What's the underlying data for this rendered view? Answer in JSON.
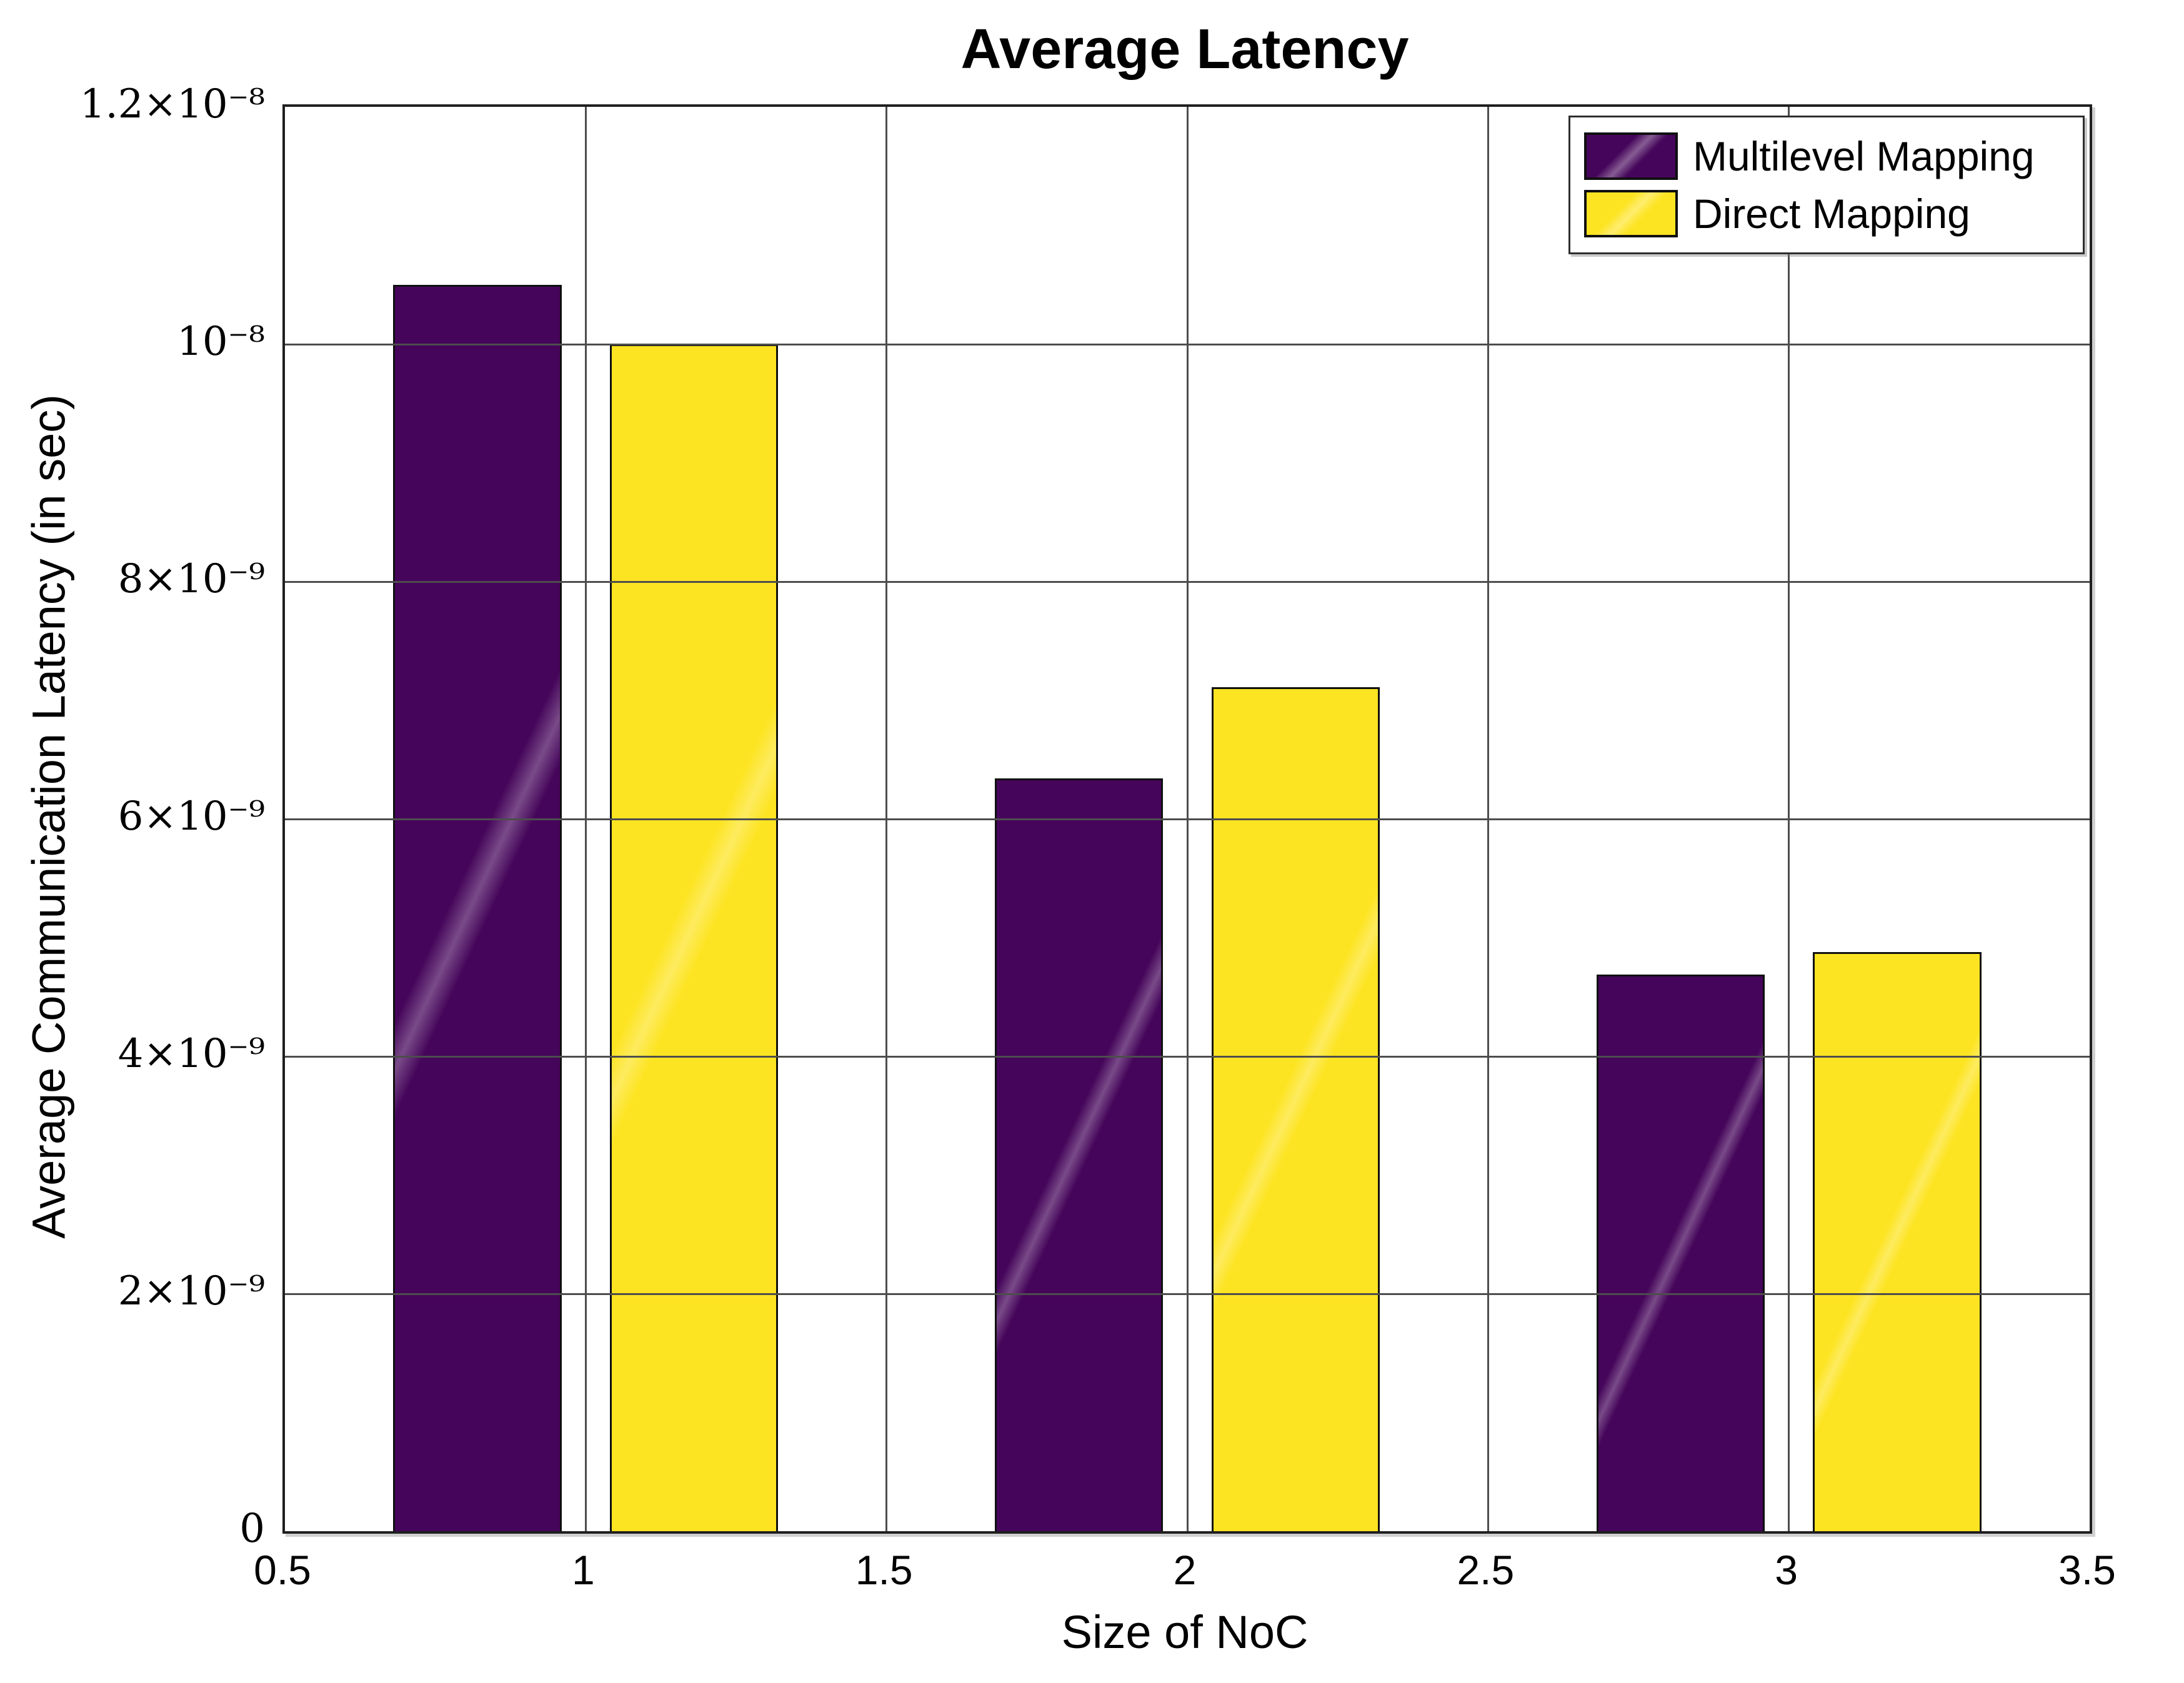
{
  "title": "Average Latency",
  "colors": {
    "multilevel": "#45055a",
    "direct": "#fde422",
    "grid": "#4d4d4d",
    "axis_border": "#1f1f1f",
    "text": "#000000",
    "background": "#ffffff"
  },
  "chart_data": {
    "type": "bar",
    "title": "Average Latency",
    "xlabel": "Size of NoC",
    "ylabel": "Average Communication Latency (in sec)",
    "categories": [
      1,
      2,
      3
    ],
    "series": [
      {
        "name": "Multilevel Mapping",
        "color": "#45055a",
        "offset": -0.18,
        "values": [
          1.05e-08,
          6.34e-09,
          4.69e-09
        ]
      },
      {
        "name": "Direct Mapping",
        "color": "#fde422",
        "offset": 0.18,
        "values": [
          1e-08,
          7.11e-09,
          4.88e-09
        ]
      }
    ],
    "bar_width": 0.28,
    "xlim": [
      0.5,
      3.5
    ],
    "ylim": [
      0,
      1.2e-08
    ],
    "x_ticks": [
      {
        "v": 0.5,
        "label": "0.5"
      },
      {
        "v": 1,
        "label": "1"
      },
      {
        "v": 1.5,
        "label": "1.5"
      },
      {
        "v": 2,
        "label": "2"
      },
      {
        "v": 2.5,
        "label": "2.5"
      },
      {
        "v": 3,
        "label": "3"
      },
      {
        "v": 3.5,
        "label": "3.5"
      }
    ],
    "y_ticks": [
      {
        "v": 0,
        "label": "0"
      },
      {
        "v": 2e-09,
        "label": "2×10⁻⁹"
      },
      {
        "v": 4e-09,
        "label": "4×10⁻⁹"
      },
      {
        "v": 6e-09,
        "label": "6×10⁻⁹"
      },
      {
        "v": 8e-09,
        "label": "8×10⁻⁹"
      },
      {
        "v": 1e-08,
        "label": "10⁻⁸"
      },
      {
        "v": 1.2e-08,
        "label": "1.2×10⁻⁸"
      }
    ],
    "grid": {
      "x_lines": [
        1,
        1.5,
        2,
        2.5,
        3
      ],
      "y_lines": [
        2e-09,
        4e-09,
        6e-09,
        8e-09,
        1e-08
      ],
      "grid_on": true
    },
    "legend_position": "top-right"
  }
}
